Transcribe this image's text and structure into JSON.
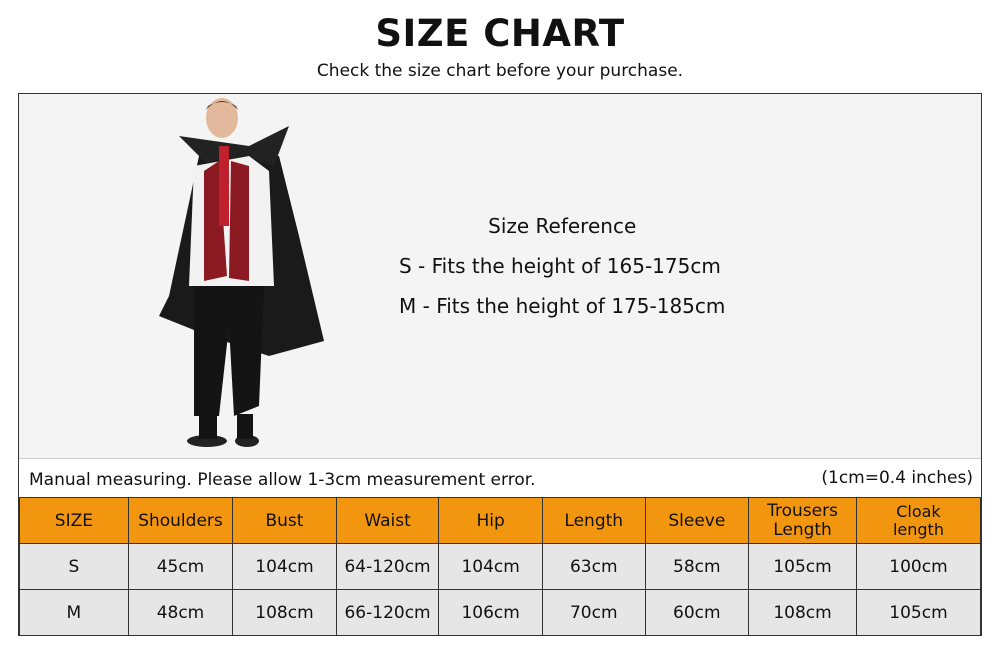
{
  "header": {
    "title": "SIZE CHART",
    "subtitle": "Check the size chart before your purchase."
  },
  "reference": {
    "heading": "Size Reference",
    "lines": [
      "S - Fits the height of 165-175cm",
      "M - Fits the height of 175-185cm"
    ]
  },
  "note": "Manual measuring. Please allow 1-3cm measurement error.",
  "conversion": "(1cm=0.4 inches)",
  "colors": {
    "header_bg": "#f3960f",
    "row_bg": "#e6e6e6",
    "photo_bg": "#f4f4f4"
  },
  "table": {
    "columns": [
      "SIZE",
      "Shoulders",
      "Bust",
      "Waist",
      "Hip",
      "Length",
      "Sleeve",
      "Trousers Length",
      "Cloak length"
    ],
    "rows": [
      [
        "S",
        "45cm",
        "104cm",
        "64-120cm",
        "104cm",
        "63cm",
        "58cm",
        "105cm",
        "100cm"
      ],
      [
        "M",
        "48cm",
        "108cm",
        "66-120cm",
        "106cm",
        "70cm",
        "60cm",
        "108cm",
        "105cm"
      ]
    ]
  }
}
